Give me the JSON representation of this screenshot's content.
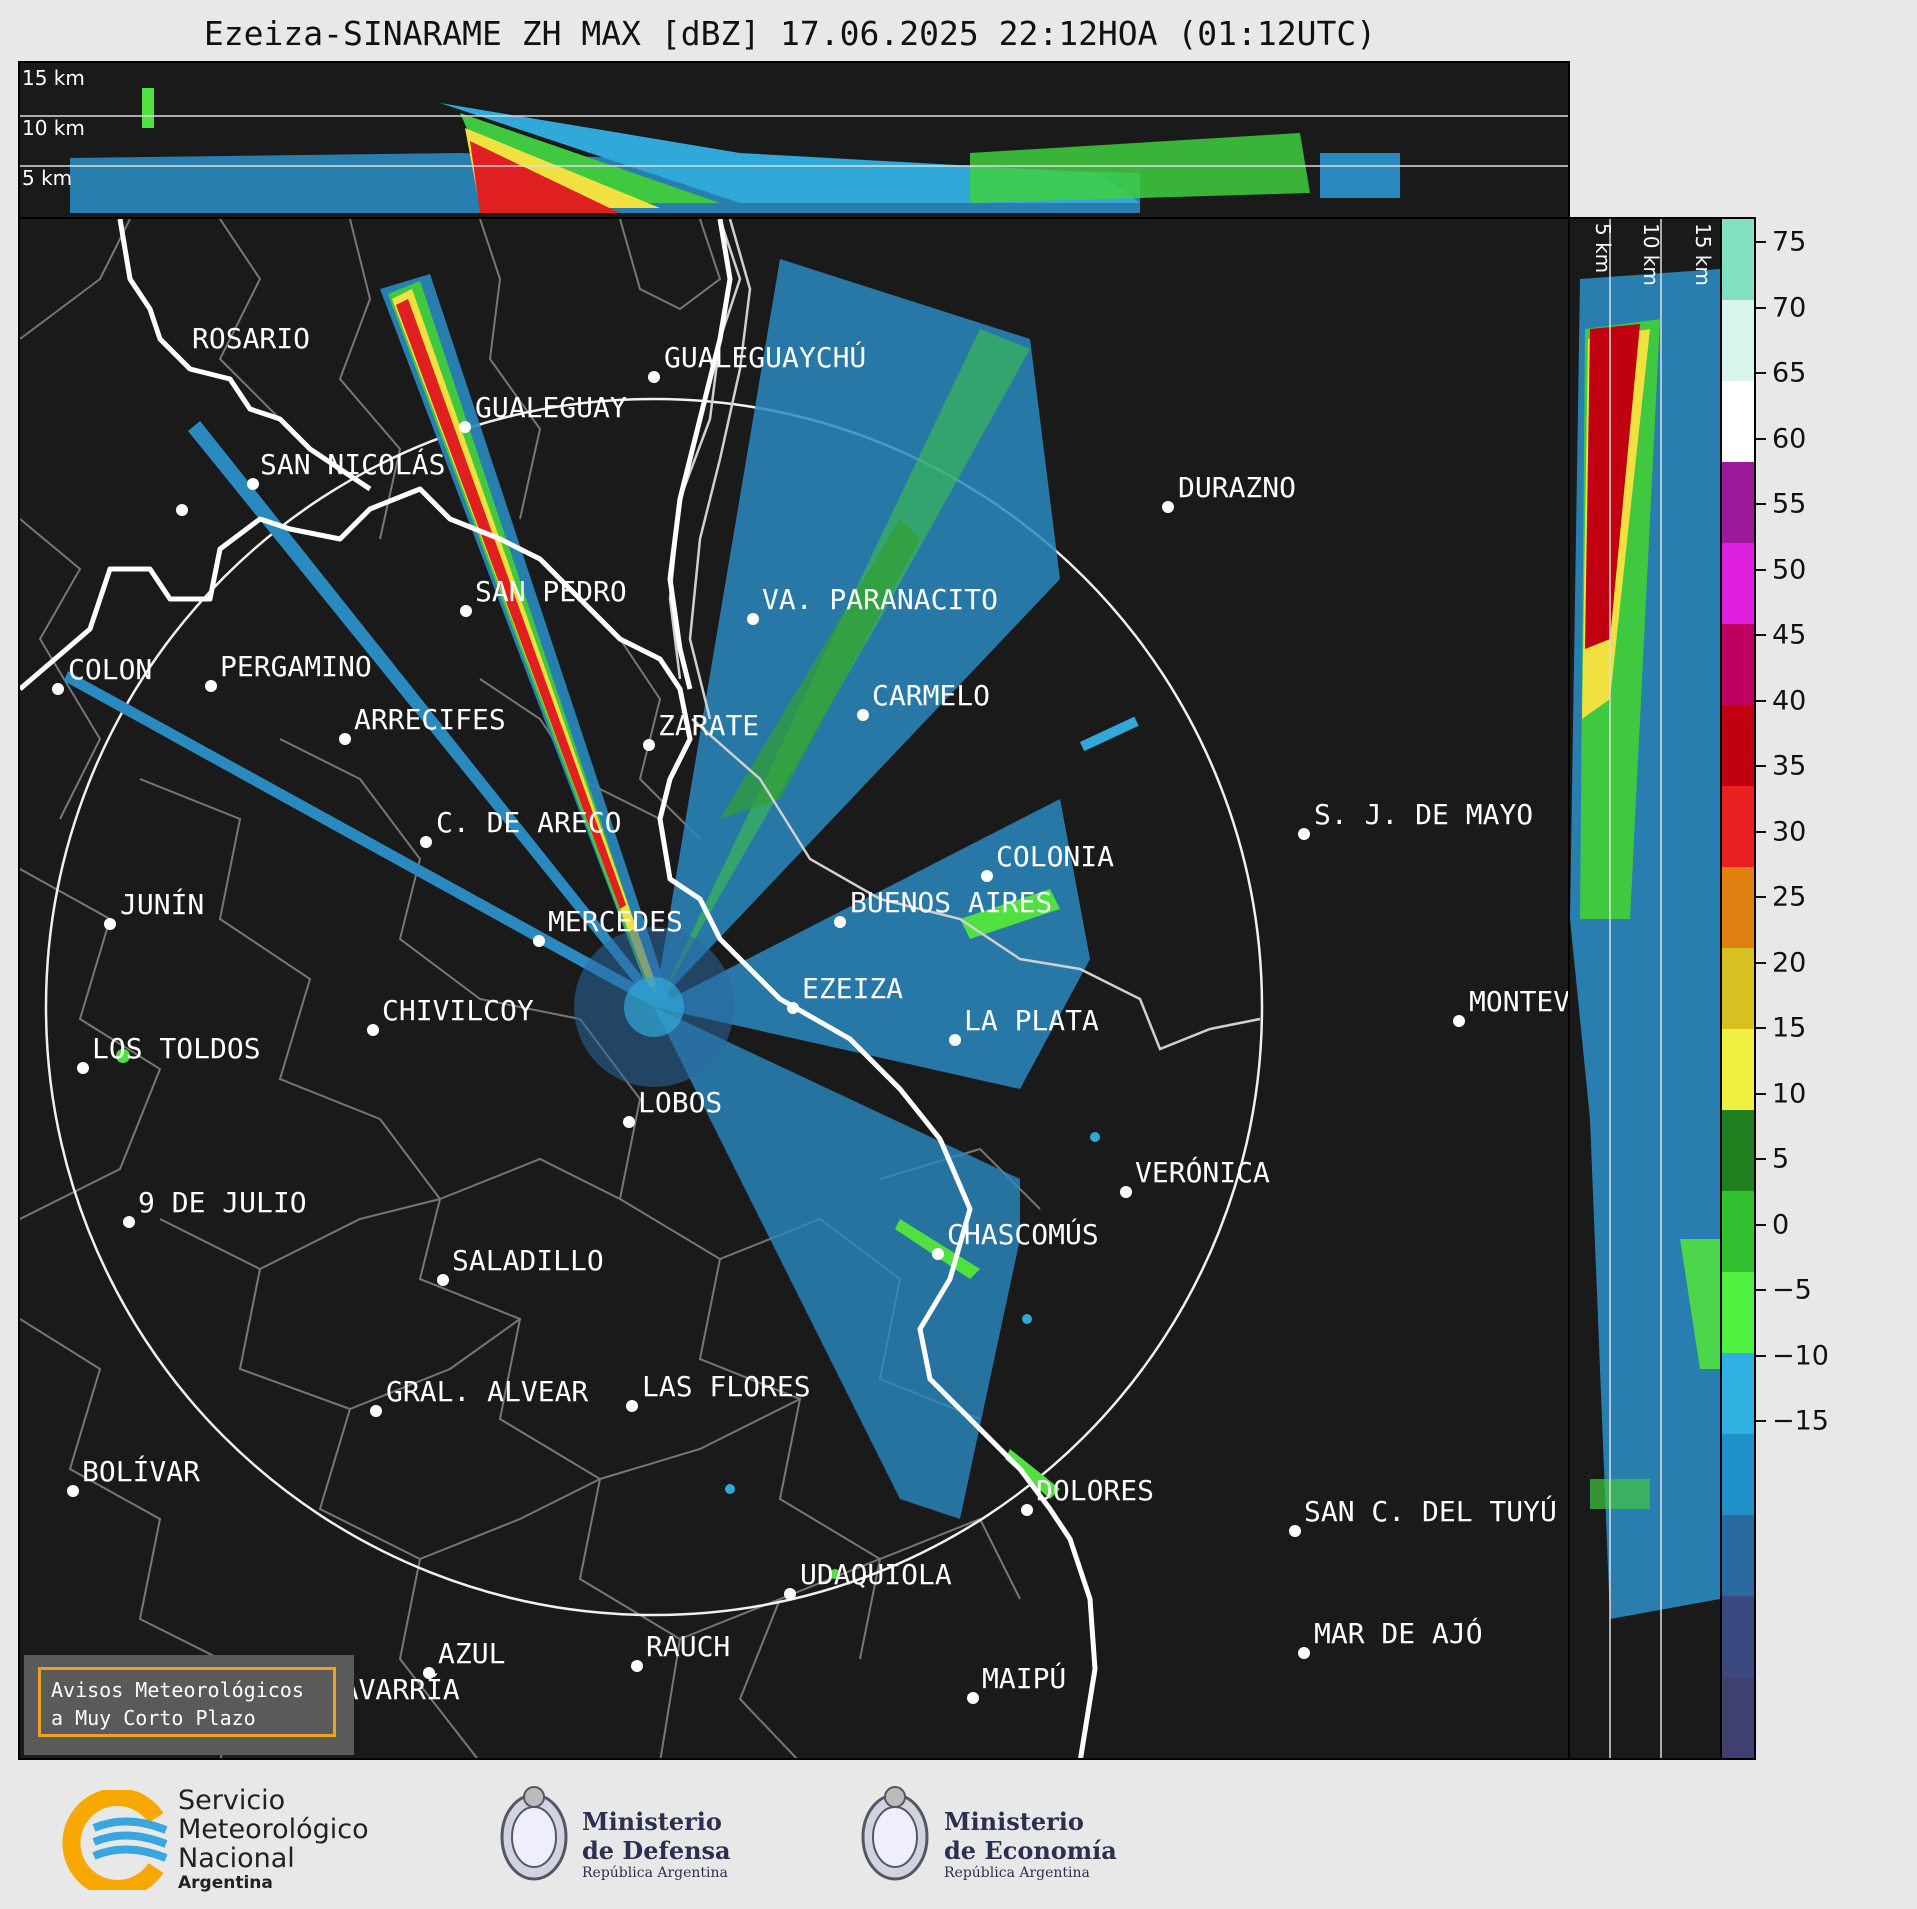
{
  "title": "Ezeiza-SINARAME ZH MAX [dBZ] 17.06.2025 22:12HOA (01:12UTC)",
  "top_panel": {
    "altitude_labels": [
      "15 km",
      "10 km",
      "5 km"
    ]
  },
  "side_panel": {
    "altitude_labels": [
      "5 km",
      "10 km",
      "15 km"
    ]
  },
  "cities": [
    {
      "name": "ROSARIO"
    },
    {
      "name": "GUALEGUAYCHÚ"
    },
    {
      "name": "GUALEGUAY"
    },
    {
      "name": "SAN NICOLÁS"
    },
    {
      "name": "DURAZNO"
    },
    {
      "name": "SAN PEDRO"
    },
    {
      "name": "VA. PARANACITO"
    },
    {
      "name": "COLON"
    },
    {
      "name": "PERGAMINO"
    },
    {
      "name": "CARMELO"
    },
    {
      "name": "ARRECIFES"
    },
    {
      "name": "ZÁRATE"
    },
    {
      "name": "S. J. DE MAYO"
    },
    {
      "name": "C. DE ARECO"
    },
    {
      "name": "COLONIA"
    },
    {
      "name": "JUNÍN"
    },
    {
      "name": "BUENOS AIRES"
    },
    {
      "name": "MERCEDES"
    },
    {
      "name": "EZEIZA"
    },
    {
      "name": "MONTEVIDEO"
    },
    {
      "name": "CHIVILCOY"
    },
    {
      "name": "LA PLATA"
    },
    {
      "name": "LOS TOLDOS"
    },
    {
      "name": "LOBOS"
    },
    {
      "name": "VERÓNICA"
    },
    {
      "name": "9 DE JULIO"
    },
    {
      "name": "CHASCOMÚS"
    },
    {
      "name": "SALADILLO"
    },
    {
      "name": "GRAL. ALVEAR"
    },
    {
      "name": "LAS FLORES"
    },
    {
      "name": "BOLÍVAR"
    },
    {
      "name": "DOLORES"
    },
    {
      "name": "SAN C. DEL TUYÚ"
    },
    {
      "name": "UDAQUIOLA"
    },
    {
      "name": "AZUL"
    },
    {
      "name": "RAUCH"
    },
    {
      "name": "MAR DE AJÓ"
    },
    {
      "name": "OLAVARRÍA"
    },
    {
      "name": "MAIPÚ"
    }
  ],
  "colorbar": {
    "ticks": [
      "75",
      "70",
      "65",
      "60",
      "55",
      "50",
      "45",
      "40",
      "35",
      "30",
      "25",
      "20",
      "15",
      "10",
      "5",
      "0",
      "−5",
      "−10",
      "−15"
    ],
    "stops": [
      "#80e0c0",
      "#d8f4ec",
      "#ffffff",
      "#9a1a9a",
      "#e020e0",
      "#c00060",
      "#c00010",
      "#e82020",
      "#e08010",
      "#d8c020",
      "#f0f040",
      "#208020",
      "#30c030",
      "#50f040",
      "#30b0e0",
      "#2090c8",
      "#2a6aa0",
      "#3a4a80",
      "#404070"
    ]
  },
  "avisos": {
    "line1": "Avisos Meteorológicos",
    "line2": "a Muy Corto Plazo"
  },
  "logos": {
    "smn": {
      "line1": "Servicio",
      "line2": "Meteorológico",
      "line3": "Nacional",
      "line4": "Argentina"
    },
    "defensa": {
      "line1": "Ministerio",
      "line2": "de Defensa",
      "line3": "República Argentina"
    },
    "economia": {
      "line1": "Ministerio",
      "line2": "de Economía",
      "line3": "República Argentina"
    }
  }
}
